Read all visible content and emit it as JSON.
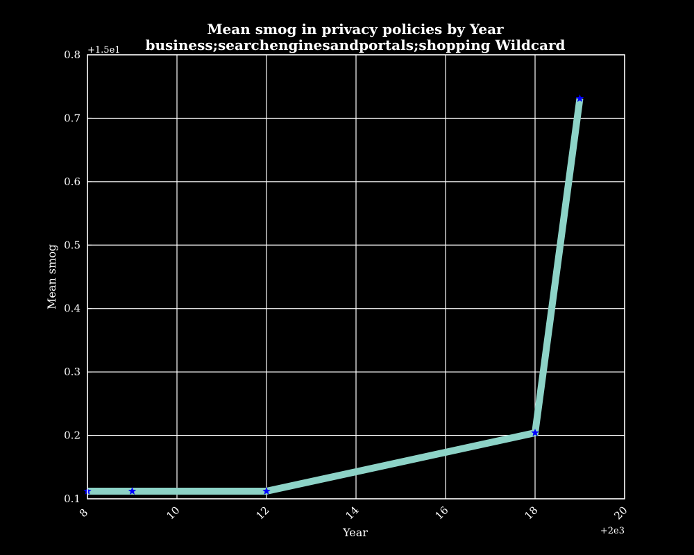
{
  "chart_data": {
    "type": "line",
    "title_line1": "Mean smog in privacy policies by Year",
    "title_line2": "business;searchenginesandportals;shopping Wildcard",
    "xlabel": "Year",
    "ylabel": "Mean smog",
    "x_offset_label": "+2e3",
    "y_offset_label": "+1.5e1",
    "xlim": [
      8,
      20
    ],
    "ylim": [
      0.1,
      0.8
    ],
    "x_ticks": [
      8,
      10,
      12,
      14,
      16,
      18,
      20
    ],
    "y_ticks": [
      0.1,
      0.2,
      0.3,
      0.4,
      0.5,
      0.6,
      0.7,
      0.8
    ],
    "x_tick_labels": [
      "8",
      "10",
      "12",
      "14",
      "16",
      "18",
      "20"
    ],
    "y_tick_labels": [
      "0.1",
      "0.2",
      "0.3",
      "0.4",
      "0.5",
      "0.6",
      "0.7",
      "0.8"
    ],
    "grid": true,
    "series": [
      {
        "x": [
          8,
          9,
          12,
          18,
          19
        ],
        "y": [
          0.112,
          0.112,
          0.112,
          0.204,
          0.731
        ],
        "line_color": "#8dd3c7",
        "marker_color": "#0000ff",
        "marker": "star"
      }
    ]
  },
  "colors": {
    "background": "#000000",
    "axes": "#ffffff",
    "grid": "#ffffff",
    "text": "#ffffff"
  }
}
